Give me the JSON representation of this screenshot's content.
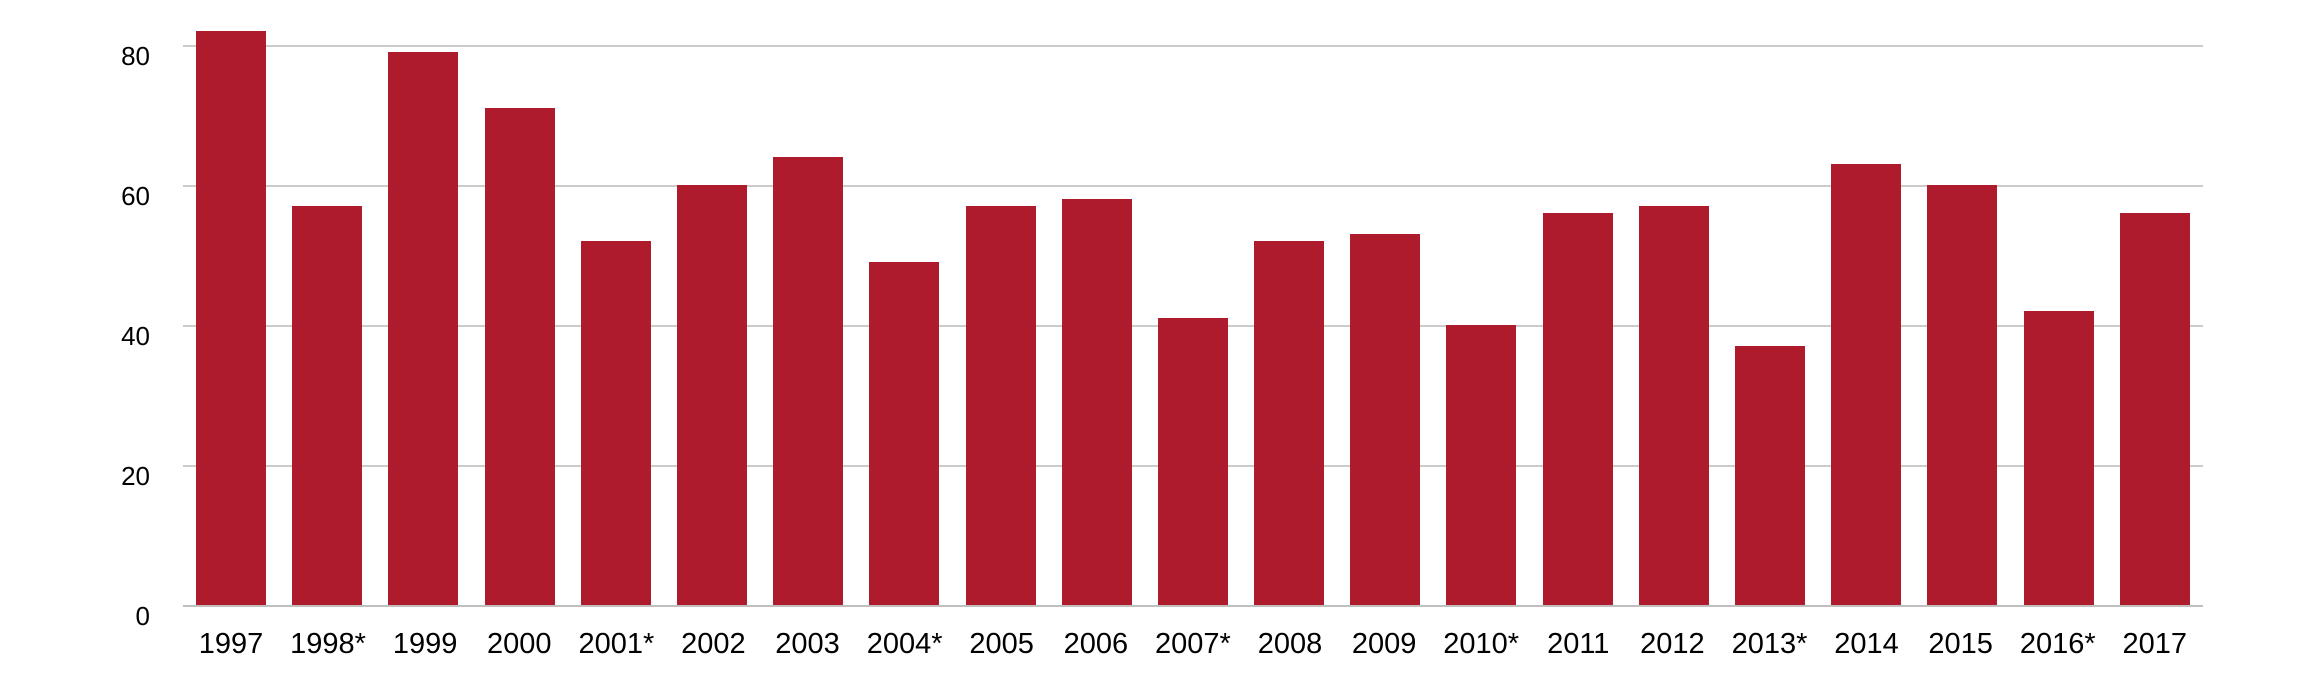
{
  "chart_data": {
    "type": "bar",
    "title": "",
    "xlabel": "",
    "ylabel": "",
    "categories": [
      "1997",
      "1998*",
      "1999",
      "2000",
      "2001*",
      "2002",
      "2003",
      "2004*",
      "2005",
      "2006",
      "2007*",
      "2008",
      "2009",
      "2010*",
      "2011",
      "2012",
      "2013*",
      "2014",
      "2015",
      "2016*",
      "2017"
    ],
    "values": [
      82,
      57,
      79,
      71,
      52,
      60,
      64,
      49,
      57,
      58,
      41,
      52,
      53,
      40,
      56,
      57,
      37,
      63,
      60,
      42,
      56
    ],
    "yticks": [
      0,
      20,
      40,
      60,
      80
    ],
    "ylim": [
      0,
      86
    ],
    "grid": "horizontal",
    "legend": "none",
    "bar_color": "#AE1B2D",
    "gridline_color": "#CDCACA",
    "axis_line_color": "#C1BEBE",
    "tick_label_color": "#000000",
    "background_color": "#FFFFFF"
  }
}
